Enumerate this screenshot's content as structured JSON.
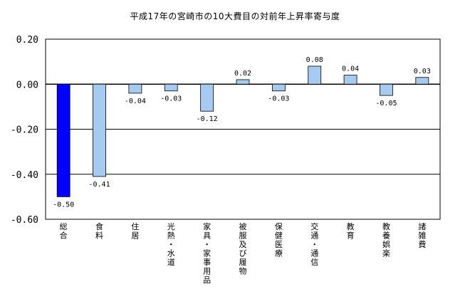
{
  "chart_data": {
    "type": "bar",
    "title": "平成17年の宮崎市の10大費目の対前年上昇率寄与度",
    "categories": [
      "総合",
      "食料",
      "住居",
      "光熱・水道",
      "家具・家事用品",
      "被服及び履物",
      "保健医療",
      "交通・通信",
      "教育",
      "教養娯楽",
      "諸雑費"
    ],
    "category_label_lines": [
      [
        "総",
        "合"
      ],
      [
        "食",
        "料"
      ],
      [
        "住",
        "居"
      ],
      [
        "光",
        "熱",
        "・",
        "水",
        "道"
      ],
      [
        "家",
        "具",
        "・",
        "家",
        "事",
        "用",
        "品"
      ],
      [
        "被",
        "服",
        "及",
        "び",
        "履",
        "物"
      ],
      [
        "保",
        "健",
        "医",
        "療"
      ],
      [
        "交",
        "通",
        "・",
        "通",
        "信"
      ],
      [
        "教",
        "育"
      ],
      [
        "教",
        "養",
        "娯",
        "楽"
      ],
      [
        "諸",
        "雑",
        "費"
      ]
    ],
    "values": [
      -0.5,
      -0.41,
      -0.04,
      -0.03,
      -0.12,
      0.02,
      -0.03,
      0.08,
      0.04,
      -0.05,
      0.03
    ],
    "value_labels": [
      "-0.50",
      "-0.41",
      "-0.04",
      "-0.03",
      "-0.12",
      "0.02",
      "-0.03",
      "0.08",
      "0.04",
      "-0.05",
      "0.03"
    ],
    "ylim": [
      -0.6,
      0.2
    ],
    "yticks": [
      0.2,
      0.0,
      -0.2,
      -0.4,
      -0.6
    ],
    "ytick_labels": [
      "0.20",
      "0.00",
      "-0.20",
      "-0.40",
      "-0.60"
    ],
    "grid": true,
    "legend": "none",
    "colors": {
      "highlight_bar": "#0000ff",
      "bar": "#a6caf0",
      "bar_stroke": "#000000",
      "grid": "#000000"
    }
  }
}
